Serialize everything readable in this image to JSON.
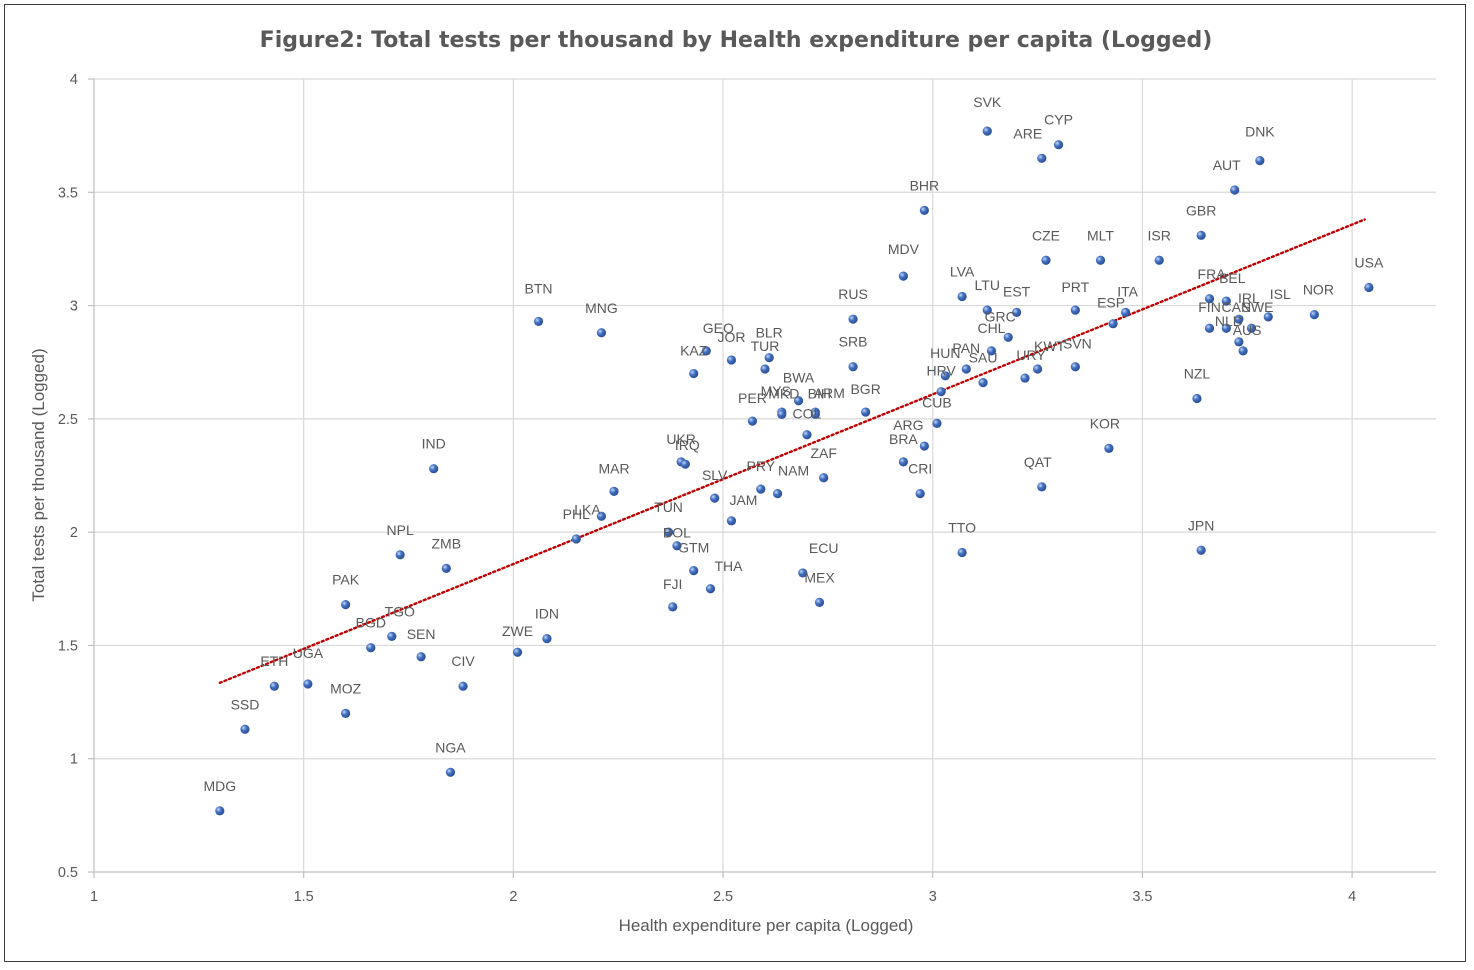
{
  "chart_data": {
    "type": "scatter",
    "title": "Figure2: Total tests per thousand by Health expenditure per capita (Logged)",
    "xlabel": "Health expenditure per capita (Logged)",
    "ylabel": "Total tests per thousand (Logged)",
    "xlim": [
      1,
      4.2
    ],
    "ylim": [
      0.5,
      4
    ],
    "xticks": [
      1,
      1.5,
      2,
      2.5,
      3,
      3.5,
      4
    ],
    "yticks": [
      0.5,
      1,
      1.5,
      2,
      2.5,
      3,
      3.5,
      4
    ],
    "xtick_labels": [
      "1",
      "1.5",
      "2",
      "2.5",
      "3",
      "3.5",
      "4"
    ],
    "ytick_labels": [
      "0.5",
      "1",
      "1.5",
      "2",
      "2.5",
      "3",
      "3.5",
      "4"
    ],
    "grid": true,
    "point_color": "#4472c4",
    "trendline": {
      "type": "linear",
      "x": [
        1.3,
        4.03
      ],
      "y": [
        1.335,
        3.38
      ],
      "color": "#c00000",
      "style": "dotted"
    },
    "points": [
      {
        "label": "MDG",
        "x": 1.3,
        "y": 0.77
      },
      {
        "label": "SSD",
        "x": 1.36,
        "y": 1.13
      },
      {
        "label": "ETH",
        "x": 1.43,
        "y": 1.32
      },
      {
        "label": "UGA",
        "x": 1.51,
        "y": 1.33
      },
      {
        "label": "MOZ",
        "x": 1.6,
        "y": 1.2
      },
      {
        "label": "PAK",
        "x": 1.6,
        "y": 1.68
      },
      {
        "label": "BGD",
        "x": 1.66,
        "y": 1.49
      },
      {
        "label": "TGO",
        "x": 1.71,
        "y": 1.54
      },
      {
        "label": "NPL",
        "x": 1.73,
        "y": 1.9
      },
      {
        "label": "SEN",
        "x": 1.78,
        "y": 1.45
      },
      {
        "label": "IND",
        "x": 1.81,
        "y": 2.28
      },
      {
        "label": "ZMB",
        "x": 1.84,
        "y": 1.84
      },
      {
        "label": "NGA",
        "x": 1.85,
        "y": 0.94
      },
      {
        "label": "CIV",
        "x": 1.88,
        "y": 1.32
      },
      {
        "label": "ZWE",
        "x": 2.01,
        "y": 1.47
      },
      {
        "label": "BTN",
        "x": 2.06,
        "y": 2.93
      },
      {
        "label": "IDN",
        "x": 2.08,
        "y": 1.53
      },
      {
        "label": "PHL",
        "x": 2.15,
        "y": 1.97
      },
      {
        "label": "LKA",
        "x": 2.21,
        "y": 2.07
      },
      {
        "label": "MNG",
        "x": 2.21,
        "y": 2.88
      },
      {
        "label": "MAR",
        "x": 2.24,
        "y": 2.18
      },
      {
        "label": "TUN",
        "x": 2.37,
        "y": 2.0
      },
      {
        "label": "FJI",
        "x": 2.38,
        "y": 1.67
      },
      {
        "label": "BOL",
        "x": 2.39,
        "y": 1.94
      },
      {
        "label": "UKR",
        "x": 2.4,
        "y": 2.31
      },
      {
        "label": "IRQ",
        "x": 2.41,
        "y": 2.3
      },
      {
        "label": "GTM",
        "x": 2.43,
        "y": 1.83
      },
      {
        "label": "KAZ",
        "x": 2.43,
        "y": 2.7
      },
      {
        "label": "GEO",
        "x": 2.46,
        "y": 2.8
      },
      {
        "label": "THA",
        "x": 2.47,
        "y": 1.75
      },
      {
        "label": "SLV",
        "x": 2.48,
        "y": 2.15
      },
      {
        "label": "JAM",
        "x": 2.52,
        "y": 2.05
      },
      {
        "label": "JOR",
        "x": 2.52,
        "y": 2.76
      },
      {
        "label": "PER",
        "x": 2.57,
        "y": 2.49
      },
      {
        "label": "PRY",
        "x": 2.59,
        "y": 2.19
      },
      {
        "label": "TUR",
        "x": 2.6,
        "y": 2.72
      },
      {
        "label": "BLR",
        "x": 2.61,
        "y": 2.77
      },
      {
        "label": "NAM",
        "x": 2.63,
        "y": 2.17
      },
      {
        "label": "MYS",
        "x": 2.64,
        "y": 2.53
      },
      {
        "label": "MKD",
        "x": 2.64,
        "y": 2.52
      },
      {
        "label": "BWA",
        "x": 2.68,
        "y": 2.58
      },
      {
        "label": "COL",
        "x": 2.7,
        "y": 2.43
      },
      {
        "label": "ARM",
        "x": 2.72,
        "y": 2.53
      },
      {
        "label": "BIH",
        "x": 2.72,
        "y": 2.52
      },
      {
        "label": "MEX",
        "x": 2.73,
        "y": 1.69
      },
      {
        "label": "ZAF",
        "x": 2.74,
        "y": 2.24
      },
      {
        "label": "ECU",
        "x": 2.74,
        "y": 1.82
      },
      {
        "label": "ECU_pt",
        "x": 2.69,
        "y": 1.82
      },
      {
        "label": "SRB",
        "x": 2.81,
        "y": 2.73
      },
      {
        "label": "RUS",
        "x": 2.81,
        "y": 2.94
      },
      {
        "label": "BGR",
        "x": 2.84,
        "y": 2.53
      },
      {
        "label": "MDV",
        "x": 2.93,
        "y": 3.13
      },
      {
        "label": "BRA",
        "x": 2.93,
        "y": 2.31
      },
      {
        "label": "CRI",
        "x": 2.97,
        "y": 2.17
      },
      {
        "label": "BHR",
        "x": 2.98,
        "y": 3.42
      },
      {
        "label": "ARG",
        "x": 2.98,
        "y": 2.38
      },
      {
        "label": "CUB",
        "x": 3.01,
        "y": 2.48
      },
      {
        "label": "HRV",
        "x": 3.02,
        "y": 2.62
      },
      {
        "label": "HUN",
        "x": 3.03,
        "y": 2.69
      },
      {
        "label": "LVA",
        "x": 3.07,
        "y": 3.04
      },
      {
        "label": "TTO",
        "x": 3.07,
        "y": 1.91
      },
      {
        "label": "PAN",
        "x": 3.08,
        "y": 2.72
      },
      {
        "label": "SAU",
        "x": 3.12,
        "y": 2.66
      },
      {
        "label": "SVK",
        "x": 3.13,
        "y": 3.77
      },
      {
        "label": "LTU",
        "x": 3.13,
        "y": 2.98
      },
      {
        "label": "CHL",
        "x": 3.14,
        "y": 2.8
      },
      {
        "label": "GRC",
        "x": 3.18,
        "y": 2.86
      },
      {
        "label": "EST",
        "x": 3.2,
        "y": 2.97
      },
      {
        "label": "URY",
        "x": 3.22,
        "y": 2.68
      },
      {
        "label": "KWT",
        "x": 3.25,
        "y": 2.72
      },
      {
        "label": "QAT",
        "x": 3.26,
        "y": 2.2
      },
      {
        "label": "ARE",
        "x": 3.26,
        "y": 3.65
      },
      {
        "label": "CZE",
        "x": 3.27,
        "y": 3.2
      },
      {
        "label": "CYP",
        "x": 3.3,
        "y": 3.71
      },
      {
        "label": "PRT",
        "x": 3.34,
        "y": 2.98
      },
      {
        "label": "SVN",
        "x": 3.34,
        "y": 2.73
      },
      {
        "label": "MLT",
        "x": 3.4,
        "y": 3.2
      },
      {
        "label": "KOR",
        "x": 3.42,
        "y": 2.37
      },
      {
        "label": "ESP",
        "x": 3.43,
        "y": 2.92
      },
      {
        "label": "ITA",
        "x": 3.46,
        "y": 2.97
      },
      {
        "label": "ISR",
        "x": 3.54,
        "y": 3.2
      },
      {
        "label": "NZL",
        "x": 3.63,
        "y": 2.59
      },
      {
        "label": "GBR",
        "x": 3.64,
        "y": 3.31
      },
      {
        "label": "JPN",
        "x": 3.64,
        "y": 1.92
      },
      {
        "label": "FIN",
        "x": 3.66,
        "y": 2.9
      },
      {
        "label": "FRA",
        "x": 3.66,
        "y": 3.03
      },
      {
        "label": "BEL",
        "x": 3.7,
        "y": 3.02
      },
      {
        "label": "CAN",
        "x": 3.7,
        "y": 2.9
      },
      {
        "label": "AUT",
        "x": 3.72,
        "y": 3.51
      },
      {
        "label": "IRL",
        "x": 3.73,
        "y": 2.94
      },
      {
        "label": "NLD",
        "x": 3.73,
        "y": 2.84
      },
      {
        "label": "AUS",
        "x": 3.74,
        "y": 2.8
      },
      {
        "label": "SWE",
        "x": 3.76,
        "y": 2.9
      },
      {
        "label": "DNK",
        "x": 3.78,
        "y": 3.64
      },
      {
        "label": "ISL",
        "x": 3.8,
        "y": 2.95
      },
      {
        "label": "NOR",
        "x": 3.91,
        "y": 2.96
      },
      {
        "label": "USA",
        "x": 4.04,
        "y": 3.08
      }
    ]
  }
}
